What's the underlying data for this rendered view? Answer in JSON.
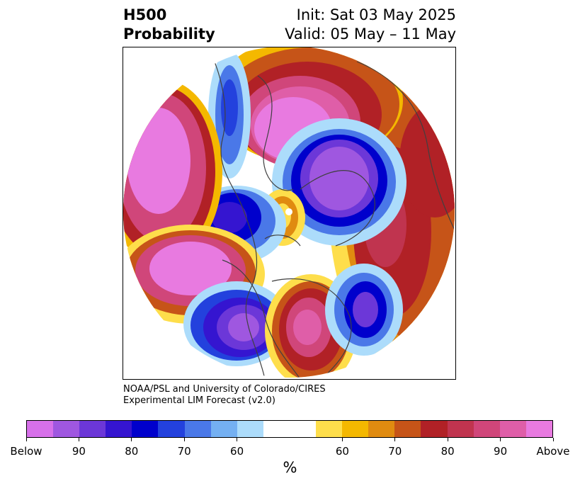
{
  "header": {
    "title_line1": "H500",
    "title_line2": "Probability",
    "init": "Init: Sat 03 May 2025",
    "valid": "Valid: 05 May – 11 May"
  },
  "credit": {
    "line1": "NOAA/PSL and University of Colorado/CIRES",
    "line2": "Experimental LIM Forecast (v2.0)"
  },
  "colorbar": {
    "colors": [
      "#d770ea",
      "#9f57e0",
      "#6c37d8",
      "#3515d0",
      "#0000cc",
      "#2341dd",
      "#4a78e8",
      "#74b0f2",
      "#acdcfb",
      "#ffffff",
      "#ffffff",
      "#fede4b",
      "#f4b800",
      "#e08b10",
      "#c65418",
      "#b12126",
      "#c0344f",
      "#d0467a",
      "#df5ea8",
      "#e87ae0"
    ],
    "ticks": [
      "Below",
      "90",
      "80",
      "70",
      "60",
      "60",
      "70",
      "80",
      "90",
      "Above"
    ],
    "unit": "%"
  }
}
